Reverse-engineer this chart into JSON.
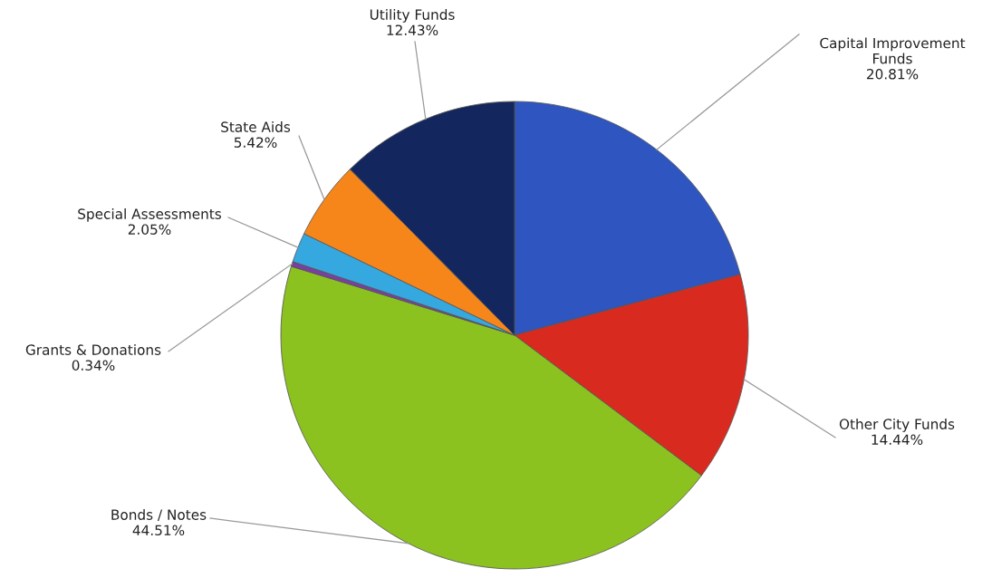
{
  "chart_data": {
    "type": "pie",
    "categories": [
      "Capital Improvement\nFunds",
      "Other City Funds",
      "Bonds / Notes",
      "Grants & Donations",
      "Special Assessments",
      "State Aids",
      "Utility Funds"
    ],
    "values": [
      20.81,
      14.44,
      44.51,
      0.34,
      2.05,
      5.42,
      12.43
    ],
    "value_labels": [
      "20.81%",
      "14.44%",
      "44.51%",
      "0.34%",
      "2.05%",
      "5.42%",
      "12.43%"
    ],
    "colors": [
      "#2e55c0",
      "#d92a1f",
      "#8cc21f",
      "#7a3fa0",
      "#35a8e0",
      "#f7861a",
      "#14265e"
    ],
    "legend": false
  }
}
